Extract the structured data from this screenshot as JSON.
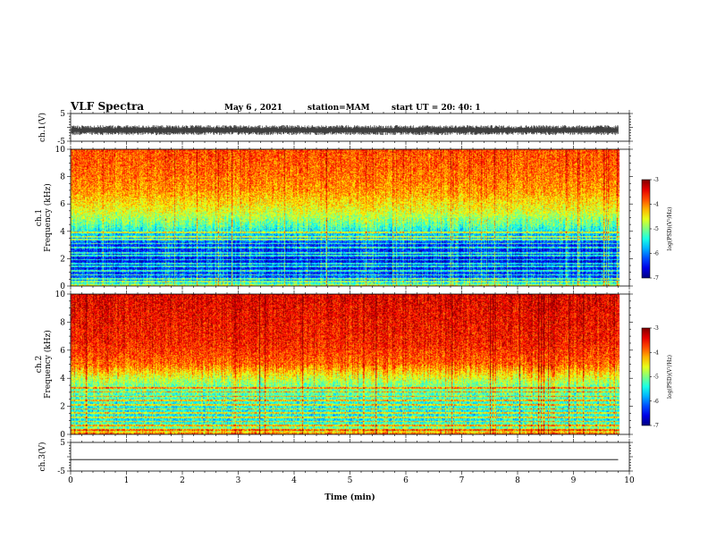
{
  "header": {
    "title": "VLF Spectra",
    "date": "May 6  , 2021",
    "station": "station=MAM",
    "start": "start  UT  =   20: 40: 1"
  },
  "chart_data": [
    {
      "type": "line",
      "panel": "ch1-waveform",
      "ylabel": "ch.1(V)",
      "ylim": [
        -5,
        5
      ],
      "yticks": [
        5,
        -5
      ],
      "xlim": [
        0,
        10
      ],
      "style": "dense noisy waveform, black, amplitude about +/-1 V around -1 V, data ends near 9.8 min"
    },
    {
      "type": "heatmap",
      "panel": "ch1-spectrogram",
      "ylabel": "ch.1\nFrequency  (kHz)",
      "ylim": [
        0,
        10
      ],
      "yticks": [
        0,
        2,
        4,
        6,
        8,
        10
      ],
      "xlim": [
        0,
        10
      ],
      "data_end_min": 9.8,
      "colorbar": {
        "label": "log(PSD)(V²/Hz)",
        "min": -7,
        "max": -3,
        "ticks": [
          -3,
          -4,
          -5,
          -6,
          -7
        ],
        "scale": "jet"
      },
      "profile_khz_vs_logpsd": [
        [
          0,
          -4.6
        ],
        [
          0.3,
          -6.0
        ],
        [
          1.5,
          -6.5
        ],
        [
          3.0,
          -6.3
        ],
        [
          3.5,
          -5.9
        ],
        [
          4.5,
          -5.1
        ],
        [
          5.5,
          -4.6
        ],
        [
          7.0,
          -4.1
        ],
        [
          8.5,
          -3.9
        ],
        [
          10,
          -3.8
        ]
      ],
      "line_interference_khz": [
        0.3,
        0.5,
        0.8,
        1.1,
        1.4,
        1.6,
        1.9,
        2.2,
        2.4,
        2.8,
        3.1,
        3.4,
        3.6,
        3.9
      ]
    },
    {
      "type": "heatmap",
      "panel": "ch2-spectrogram",
      "ylabel": "ch.2\nFrequency  (kHz)",
      "ylim": [
        0,
        10
      ],
      "yticks": [
        0,
        2,
        4,
        6,
        8,
        10
      ],
      "xlim": [
        0,
        10
      ],
      "data_end_min": 9.8,
      "colorbar": {
        "label": "log(PSD)(V²/Hz)",
        "min": -7,
        "max": -3,
        "ticks": [
          -3,
          -4,
          -5,
          -6,
          -7
        ],
        "scale": "jet"
      },
      "profile_khz_vs_logpsd": [
        [
          0,
          -3.9
        ],
        [
          0.3,
          -4.9
        ],
        [
          1.0,
          -5.5
        ],
        [
          2.0,
          -5.4
        ],
        [
          3.5,
          -5.0
        ],
        [
          4.2,
          -4.5
        ],
        [
          5.0,
          -3.9
        ],
        [
          6.5,
          -3.6
        ],
        [
          10,
          -3.4
        ]
      ],
      "line_interference_khz": [
        0.3,
        0.6,
        0.9,
        1.2,
        1.5,
        1.8,
        2.1,
        2.4,
        2.7,
        3.0,
        3.3
      ]
    },
    {
      "type": "line",
      "panel": "ch3-waveform",
      "ylabel": "ch.3(V)",
      "ylim": [
        -5,
        5
      ],
      "yticks": [
        5,
        -5
      ],
      "xlim": [
        0,
        10
      ],
      "xlabel": "Time  (min)",
      "xticks": [
        0,
        1,
        2,
        3,
        4,
        5,
        6,
        7,
        8,
        9,
        10
      ],
      "x": [
        0,
        9.8
      ],
      "y": [
        -1,
        -1
      ]
    }
  ]
}
